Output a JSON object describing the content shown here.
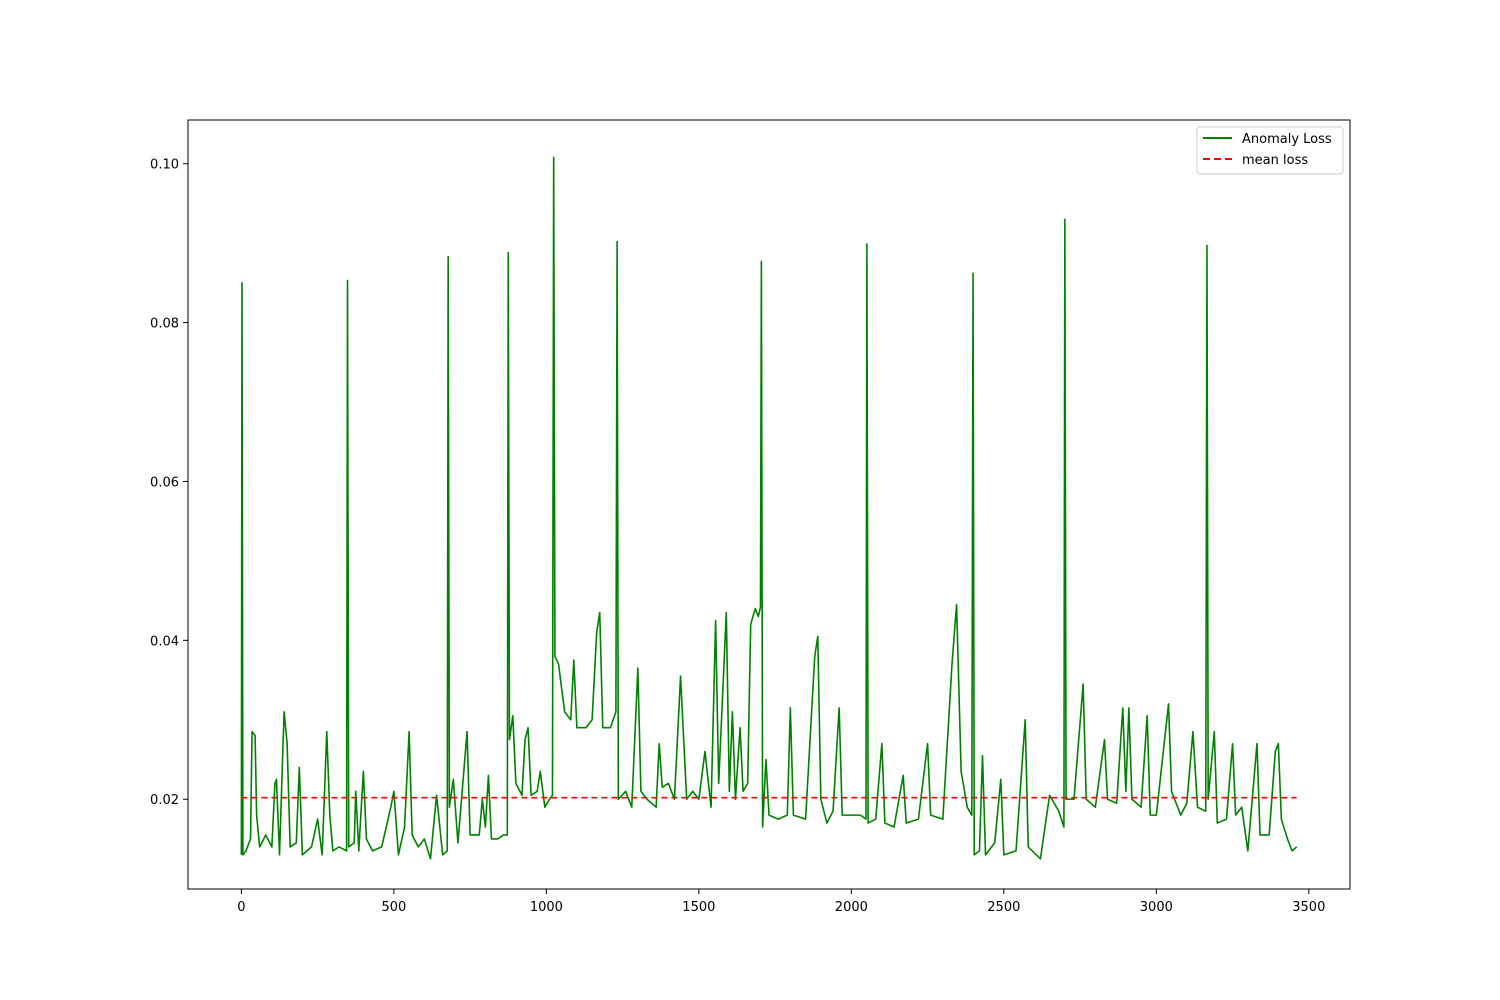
{
  "chart_data": {
    "type": "line",
    "title": "",
    "xlabel": "",
    "ylabel": "",
    "xlim": [
      -175,
      3635
    ],
    "ylim": [
      0.0087,
      0.1055
    ],
    "x_ticks": [
      0,
      500,
      1000,
      1500,
      2000,
      2500,
      3000,
      3500
    ],
    "y_ticks": [
      0.02,
      0.04,
      0.06,
      0.08,
      0.1
    ],
    "x_tick_labels": [
      "0",
      "500",
      "1000",
      "1500",
      "2000",
      "2500",
      "3000",
      "3500"
    ],
    "y_tick_labels": [
      "0.02",
      "0.04",
      "0.06",
      "0.08",
      "0.10"
    ],
    "grid": false,
    "legend_position": "top-right",
    "series": [
      {
        "name": "Anomaly Loss",
        "color": "#008000",
        "style": "solid",
        "points": [
          [
            0,
            0.013
          ],
          [
            2,
            0.085
          ],
          [
            5,
            0.013
          ],
          [
            15,
            0.0135
          ],
          [
            30,
            0.015
          ],
          [
            35,
            0.0285
          ],
          [
            45,
            0.028
          ],
          [
            50,
            0.018
          ],
          [
            60,
            0.014
          ],
          [
            80,
            0.0155
          ],
          [
            100,
            0.014
          ],
          [
            110,
            0.022
          ],
          [
            115,
            0.0225
          ],
          [
            125,
            0.013
          ],
          [
            140,
            0.031
          ],
          [
            150,
            0.027
          ],
          [
            160,
            0.014
          ],
          [
            180,
            0.0145
          ],
          [
            190,
            0.024
          ],
          [
            200,
            0.013
          ],
          [
            230,
            0.014
          ],
          [
            250,
            0.0175
          ],
          [
            265,
            0.013
          ],
          [
            280,
            0.0285
          ],
          [
            290,
            0.018
          ],
          [
            300,
            0.0135
          ],
          [
            320,
            0.014
          ],
          [
            345,
            0.0135
          ],
          [
            348,
            0.0853
          ],
          [
            352,
            0.014
          ],
          [
            370,
            0.0145
          ],
          [
            375,
            0.021
          ],
          [
            385,
            0.0135
          ],
          [
            400,
            0.0235
          ],
          [
            410,
            0.015
          ],
          [
            430,
            0.0135
          ],
          [
            460,
            0.014
          ],
          [
            490,
            0.019
          ],
          [
            500,
            0.021
          ],
          [
            515,
            0.013
          ],
          [
            535,
            0.0165
          ],
          [
            550,
            0.0285
          ],
          [
            560,
            0.0155
          ],
          [
            580,
            0.014
          ],
          [
            600,
            0.015
          ],
          [
            620,
            0.0125
          ],
          [
            640,
            0.0205
          ],
          [
            660,
            0.013
          ],
          [
            675,
            0.0135
          ],
          [
            678,
            0.0883
          ],
          [
            682,
            0.019
          ],
          [
            695,
            0.0225
          ],
          [
            710,
            0.0145
          ],
          [
            740,
            0.0285
          ],
          [
            750,
            0.0155
          ],
          [
            780,
            0.0155
          ],
          [
            790,
            0.02
          ],
          [
            800,
            0.0165
          ],
          [
            810,
            0.023
          ],
          [
            820,
            0.015
          ],
          [
            840,
            0.015
          ],
          [
            860,
            0.0155
          ],
          [
            872,
            0.0155
          ],
          [
            875,
            0.0888
          ],
          [
            879,
            0.0275
          ],
          [
            890,
            0.0305
          ],
          [
            900,
            0.022
          ],
          [
            920,
            0.0205
          ],
          [
            930,
            0.0275
          ],
          [
            940,
            0.029
          ],
          [
            950,
            0.0205
          ],
          [
            970,
            0.021
          ],
          [
            980,
            0.0235
          ],
          [
            995,
            0.019
          ],
          [
            1010,
            0.02
          ],
          [
            1020,
            0.0205
          ],
          [
            1024,
            0.1008
          ],
          [
            1028,
            0.038
          ],
          [
            1040,
            0.037
          ],
          [
            1060,
            0.031
          ],
          [
            1080,
            0.03
          ],
          [
            1090,
            0.0375
          ],
          [
            1100,
            0.029
          ],
          [
            1130,
            0.029
          ],
          [
            1150,
            0.03
          ],
          [
            1165,
            0.041
          ],
          [
            1175,
            0.0435
          ],
          [
            1185,
            0.029
          ],
          [
            1210,
            0.029
          ],
          [
            1228,
            0.031
          ],
          [
            1232,
            0.0902
          ],
          [
            1236,
            0.02
          ],
          [
            1260,
            0.021
          ],
          [
            1280,
            0.019
          ],
          [
            1300,
            0.0365
          ],
          [
            1310,
            0.021
          ],
          [
            1330,
            0.02
          ],
          [
            1360,
            0.019
          ],
          [
            1370,
            0.027
          ],
          [
            1380,
            0.0215
          ],
          [
            1400,
            0.022
          ],
          [
            1420,
            0.02
          ],
          [
            1440,
            0.0355
          ],
          [
            1460,
            0.02
          ],
          [
            1480,
            0.021
          ],
          [
            1500,
            0.02
          ],
          [
            1520,
            0.026
          ],
          [
            1540,
            0.019
          ],
          [
            1555,
            0.0425
          ],
          [
            1565,
            0.022
          ],
          [
            1590,
            0.0435
          ],
          [
            1600,
            0.021
          ],
          [
            1610,
            0.031
          ],
          [
            1620,
            0.02
          ],
          [
            1635,
            0.029
          ],
          [
            1645,
            0.021
          ],
          [
            1660,
            0.022
          ],
          [
            1670,
            0.042
          ],
          [
            1685,
            0.044
          ],
          [
            1695,
            0.043
          ],
          [
            1702,
            0.0442
          ],
          [
            1705,
            0.0877
          ],
          [
            1709,
            0.0165
          ],
          [
            1720,
            0.025
          ],
          [
            1730,
            0.018
          ],
          [
            1760,
            0.0175
          ],
          [
            1790,
            0.018
          ],
          [
            1800,
            0.0315
          ],
          [
            1810,
            0.018
          ],
          [
            1850,
            0.0175
          ],
          [
            1880,
            0.038
          ],
          [
            1890,
            0.0405
          ],
          [
            1900,
            0.02
          ],
          [
            1920,
            0.017
          ],
          [
            1940,
            0.0185
          ],
          [
            1960,
            0.0315
          ],
          [
            1970,
            0.018
          ],
          [
            2000,
            0.018
          ],
          [
            2030,
            0.018
          ],
          [
            2048,
            0.0175
          ],
          [
            2051,
            0.0899
          ],
          [
            2055,
            0.017
          ],
          [
            2080,
            0.0175
          ],
          [
            2100,
            0.027
          ],
          [
            2110,
            0.017
          ],
          [
            2140,
            0.0165
          ],
          [
            2170,
            0.023
          ],
          [
            2180,
            0.017
          ],
          [
            2220,
            0.0175
          ],
          [
            2250,
            0.027
          ],
          [
            2260,
            0.018
          ],
          [
            2300,
            0.0175
          ],
          [
            2330,
            0.037
          ],
          [
            2345,
            0.0445
          ],
          [
            2360,
            0.0235
          ],
          [
            2380,
            0.019
          ],
          [
            2395,
            0.018
          ],
          [
            2399,
            0.0862
          ],
          [
            2403,
            0.013
          ],
          [
            2420,
            0.0135
          ],
          [
            2430,
            0.0255
          ],
          [
            2440,
            0.013
          ],
          [
            2470,
            0.0145
          ],
          [
            2490,
            0.0225
          ],
          [
            2500,
            0.013
          ],
          [
            2540,
            0.0135
          ],
          [
            2570,
            0.03
          ],
          [
            2580,
            0.014
          ],
          [
            2620,
            0.0125
          ],
          [
            2650,
            0.0205
          ],
          [
            2680,
            0.0185
          ],
          [
            2697,
            0.0165
          ],
          [
            2700,
            0.093
          ],
          [
            2704,
            0.02
          ],
          [
            2730,
            0.02
          ],
          [
            2760,
            0.0345
          ],
          [
            2770,
            0.02
          ],
          [
            2800,
            0.019
          ],
          [
            2830,
            0.0275
          ],
          [
            2840,
            0.02
          ],
          [
            2870,
            0.0195
          ],
          [
            2890,
            0.0315
          ],
          [
            2900,
            0.021
          ],
          [
            2910,
            0.0315
          ],
          [
            2920,
            0.02
          ],
          [
            2950,
            0.019
          ],
          [
            2970,
            0.0305
          ],
          [
            2980,
            0.018
          ],
          [
            3000,
            0.018
          ],
          [
            3040,
            0.032
          ],
          [
            3050,
            0.021
          ],
          [
            3080,
            0.018
          ],
          [
            3100,
            0.0195
          ],
          [
            3120,
            0.0285
          ],
          [
            3135,
            0.019
          ],
          [
            3162,
            0.0185
          ],
          [
            3166,
            0.0897
          ],
          [
            3170,
            0.02
          ],
          [
            3190,
            0.0285
          ],
          [
            3200,
            0.017
          ],
          [
            3230,
            0.0175
          ],
          [
            3250,
            0.027
          ],
          [
            3260,
            0.018
          ],
          [
            3280,
            0.019
          ],
          [
            3300,
            0.0135
          ],
          [
            3330,
            0.027
          ],
          [
            3340,
            0.0155
          ],
          [
            3370,
            0.0155
          ],
          [
            3390,
            0.026
          ],
          [
            3400,
            0.027
          ],
          [
            3410,
            0.0175
          ],
          [
            3430,
            0.015
          ],
          [
            3445,
            0.0135
          ],
          [
            3460,
            0.014
          ]
        ]
      },
      {
        "name": "mean loss",
        "color": "#ff0000",
        "style": "dashed",
        "points": [
          [
            0,
            0.0202
          ],
          [
            3460,
            0.0202
          ]
        ]
      }
    ]
  }
}
